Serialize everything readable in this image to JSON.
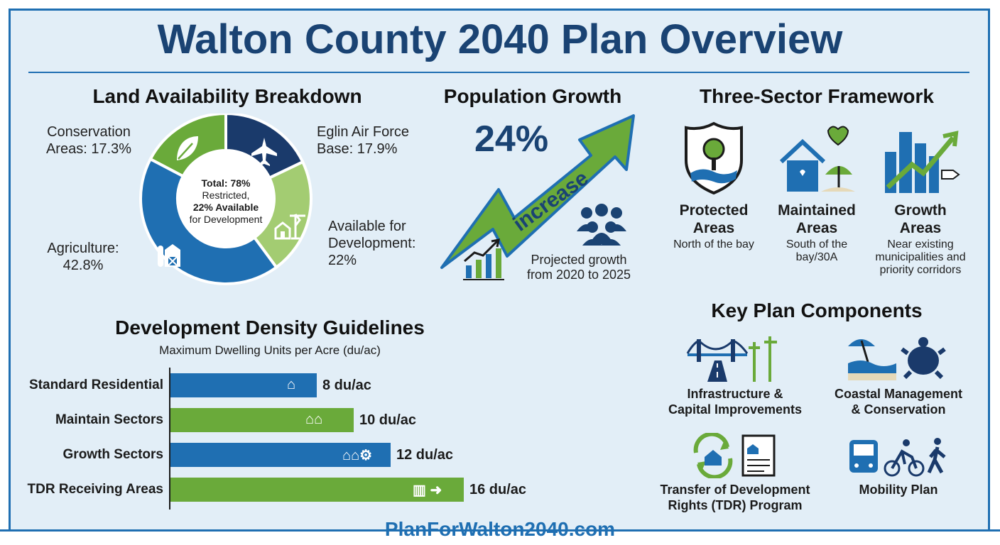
{
  "title": "Walton County 2040 Plan Overview",
  "colors": {
    "blue": "#1f6fb2",
    "navy": "#1a3a6b",
    "green": "#6aaa3a",
    "light_green": "#a3cc72",
    "bg": "#e2eef7"
  },
  "land": {
    "heading": "Land Availability Breakdown",
    "center_total": "Total: 78%",
    "center_restricted": "Restricted,",
    "center_available": "22% Available",
    "center_dev": "for Development",
    "segments": [
      {
        "name": "Conservation Areas",
        "value": 17.3,
        "label_line1": "Conservation",
        "label_line2": "Areas: 17.3%",
        "icon": "leaf-icon"
      },
      {
        "name": "Eglin Air Force Base",
        "value": 17.9,
        "label_line1": "Eglin Air Force",
        "label_line2": "Base: 17.9%",
        "icon": "jet-icon"
      },
      {
        "name": "Available for Development",
        "value": 22,
        "label_line1": "Available for",
        "label_line2": "Development:",
        "label_line3": "22%",
        "icon": "construction-icon"
      },
      {
        "name": "Agriculture",
        "value": 42.8,
        "label_line1": "Agriculture:",
        "label_line2": "42.8%",
        "icon": "barn-icon"
      }
    ]
  },
  "population": {
    "heading": "Population Growth",
    "value": "24%",
    "arrow_text": "increase",
    "caption_line1": "Projected growth",
    "caption_line2": "from 2020 to 2025"
  },
  "framework": {
    "heading": "Three-Sector Framework",
    "sectors": [
      {
        "name1": "Protected",
        "name2": "Areas",
        "desc1": "North of the bay",
        "desc2": "",
        "desc3": "",
        "icon": "shield-tree-icon"
      },
      {
        "name1": "Maintained",
        "name2": "Areas",
        "desc1": "South of the",
        "desc2": "bay/30A",
        "desc3": "",
        "icon": "house-beach-icon"
      },
      {
        "name1": "Growth",
        "name2": "Areas",
        "desc1": "Near existing",
        "desc2": "municipalities and",
        "desc3": "priority corridors",
        "icon": "city-growth-icon"
      }
    ]
  },
  "density": {
    "heading": "Development Density Guidelines",
    "subheading": "Maximum Dwelling Units per Acre (du/ac)",
    "bars": [
      {
        "label": "Standard Residential",
        "value": 8,
        "value_label": "8 du/ac",
        "color": "#1f6fb2"
      },
      {
        "label": "Maintain Sectors",
        "value": 10,
        "value_label": "10 du/ac",
        "color": "#6aaa3a"
      },
      {
        "label": "Growth Sectors",
        "value": 12,
        "value_label": "12 du/ac",
        "color": "#1f6fb2"
      },
      {
        "label": "TDR Receiving Areas",
        "value": 16,
        "value_label": "16 du/ac",
        "color": "#6aaa3a"
      }
    ]
  },
  "components": {
    "heading": "Key Plan Components",
    "items": [
      {
        "line1": "Infrastructure &",
        "line2": "Capital Improvements",
        "icon": "bridge-road-icon"
      },
      {
        "line1": "Coastal Management",
        "line2": "& Conservation",
        "icon": "beach-turtle-icon"
      },
      {
        "line1": "Transfer of Development",
        "line2": "Rights (TDR) Program",
        "icon": "transfer-document-icon"
      },
      {
        "line1": "Mobility Plan",
        "line2": "",
        "icon": "bus-bike-walk-icon"
      }
    ]
  },
  "footer": "PlanForWalton2040.com"
}
